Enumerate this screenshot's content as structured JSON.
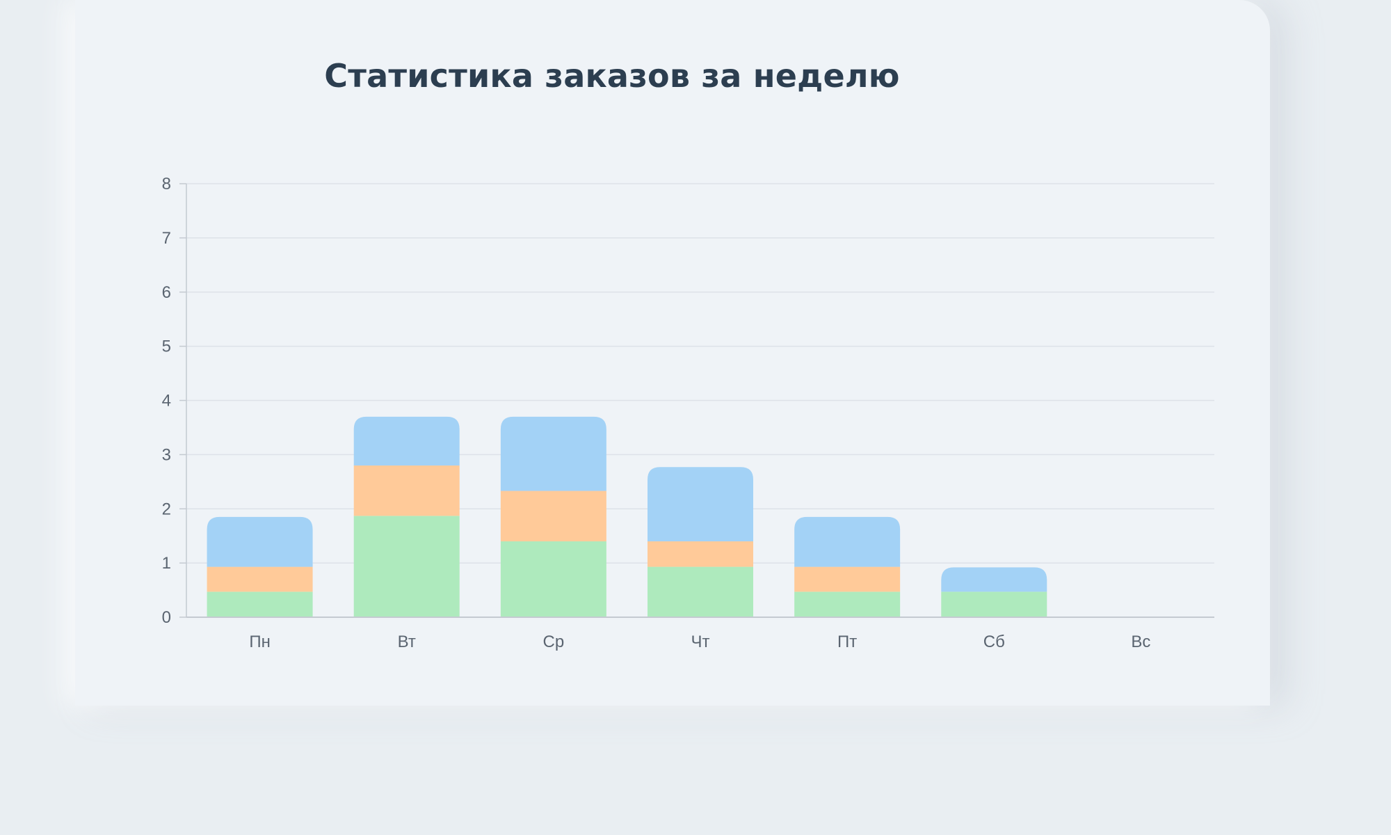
{
  "chart_data": {
    "type": "bar",
    "stacked": true,
    "title": "Статистика заказов за неделю",
    "categories": [
      "Пн",
      "Вт",
      "Ср",
      "Чт",
      "Пт",
      "Сб",
      "Вс"
    ],
    "series": [
      {
        "values": [
          0.47,
          1.87,
          1.4,
          0.93,
          0.47,
          0.47,
          0
        ],
        "color": "#aeeabd"
      },
      {
        "values": [
          0.46,
          0.93,
          0.93,
          0.47,
          0.46,
          0,
          0
        ],
        "color": "#ffca99"
      },
      {
        "values": [
          0.92,
          0.9,
          1.37,
          1.37,
          0.92,
          0.45,
          0
        ],
        "color": "#a3d2f6"
      }
    ],
    "ylim": [
      0,
      8
    ],
    "yticks": [
      0,
      1,
      2,
      3,
      4,
      5,
      6,
      7,
      8
    ],
    "grid": true,
    "legend": "none",
    "xlabel": "",
    "ylabel": ""
  },
  "colors": {
    "gridline": "#dde2e8",
    "axis": "#c4cad1",
    "title": "#2c3e50"
  }
}
